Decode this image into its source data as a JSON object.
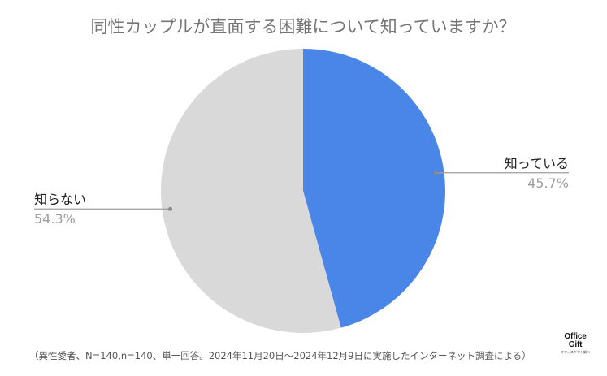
{
  "chart_data": {
    "type": "pie",
    "title": "同性カップルが直面する困難について知っていますか？",
    "slices": [
      {
        "label": "知っている",
        "value": 45.7,
        "display": "45.7%",
        "color": "#4a86e8"
      },
      {
        "label": "知らない",
        "value": 54.3,
        "display": "54.3%",
        "color": "#d9d9d9"
      }
    ],
    "legend": "none"
  },
  "footnote": "（異性愛者、N=140,n=140、単一回答。2024年11月20日〜2024年12月9日に実施したインターネット調査による）",
  "logo": {
    "line1": "Office",
    "line2": "Gift",
    "line3": "オフィスギフト調べ"
  }
}
